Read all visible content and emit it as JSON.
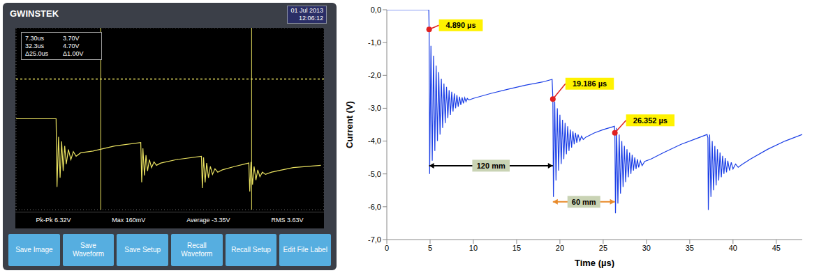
{
  "chart_data": [
    {
      "type": "line",
      "color": "#e8e060",
      "header": {
        "brand": "GWINSTEK",
        "date": "01 Jul 2013",
        "time": "12:06:12"
      },
      "readouts": [
        "7.30us",
        "3.70V",
        "32.3us",
        "4.70V",
        "Δ25.0us",
        "Δ1.00V"
      ],
      "measurements": [
        "Pk-Pk 6.32V",
        "Max 160mV",
        "Average -3.35V",
        "RMS 3.63V"
      ],
      "buttons": [
        "Save Image",
        "Save Waveform",
        "Save Setup",
        "Recall Waveform",
        "Recall Setup",
        "Edit File Label"
      ],
      "x": [
        0,
        1.3,
        1.33,
        1.38,
        1.43,
        1.48,
        1.53,
        1.58,
        1.63,
        1.7,
        1.78,
        1.86,
        1.95,
        2.1,
        2.5,
        3.2,
        4.05,
        4.08,
        4.12,
        4.17,
        4.22,
        4.27,
        4.33,
        4.4,
        4.48,
        4.56,
        4.7,
        5.2,
        6.02,
        6.05,
        6.09,
        6.14,
        6.19,
        6.25,
        6.31,
        6.38,
        6.46,
        6.55,
        6.7,
        7.1,
        7.56,
        7.59,
        7.63,
        7.68,
        7.73,
        7.79,
        7.85,
        7.92,
        8.0,
        8.1,
        8.3,
        9.0,
        9.9
      ],
      "values": [
        0,
        0,
        -3.0,
        -0.8,
        -2.6,
        -1.0,
        -2.3,
        -1.2,
        -2.0,
        -1.35,
        -1.8,
        -1.45,
        -1.65,
        -1.5,
        -1.42,
        -1.2,
        -1.05,
        -2.8,
        -1.3,
        -2.5,
        -1.6,
        -2.3,
        -1.8,
        -2.15,
        -1.9,
        -2.05,
        -1.95,
        -1.8,
        -1.65,
        -3.05,
        -1.7,
        -2.8,
        -1.95,
        -2.6,
        -2.1,
        -2.45,
        -2.2,
        -2.35,
        -2.25,
        -2.1,
        -1.95,
        -3.2,
        -1.9,
        -2.9,
        -2.1,
        -2.7,
        -2.25,
        -2.55,
        -2.35,
        -2.45,
        -2.35,
        -2.15,
        -2.05
      ],
      "xlim": [
        0,
        10
      ],
      "ylim": [
        -4,
        4
      ],
      "xticks": [
        0,
        1,
        2,
        3,
        4,
        5,
        6,
        7,
        8,
        9,
        10
      ],
      "yticks": [
        -4,
        -3,
        -2,
        -1,
        0,
        1,
        2,
        3,
        4
      ],
      "grid": true,
      "tick_labels": false,
      "cursors": {
        "x": [
          2.75,
          7.65
        ],
        "y": [
          1.75
        ]
      }
    },
    {
      "type": "line",
      "color": "#1a3ee6",
      "x_label": "Time (µs)",
      "y_label": "Current (V)",
      "x": [
        0,
        4.85,
        4.89,
        4.95,
        5.1,
        5.25,
        5.4,
        5.55,
        5.7,
        5.85,
        6.0,
        6.15,
        6.3,
        6.45,
        6.6,
        6.75,
        6.9,
        7.05,
        7.2,
        7.35,
        7.5,
        7.65,
        7.8,
        7.95,
        8.1,
        8.25,
        8.4,
        8.55,
        8.7,
        8.85,
        9.0,
        9.15,
        9.3,
        9.5,
        10,
        12,
        14,
        16,
        18,
        19.1,
        19.186,
        19.25,
        19.4,
        19.55,
        19.7,
        19.85,
        20.0,
        20.15,
        20.3,
        20.45,
        20.6,
        20.75,
        20.9,
        21.05,
        21.2,
        21.35,
        21.5,
        21.65,
        21.8,
        21.95,
        22.1,
        22.3,
        22.5,
        22.7,
        23.0,
        24,
        25,
        26.3,
        26.352,
        26.42,
        26.55,
        26.7,
        26.85,
        27.0,
        27.15,
        27.3,
        27.45,
        27.6,
        27.75,
        27.9,
        28.05,
        28.2,
        28.35,
        28.5,
        28.65,
        28.8,
        28.95,
        29.1,
        29.3,
        29.5,
        29.8,
        30.5,
        32,
        34,
        36,
        37.0,
        37.1,
        37.15,
        37.3,
        37.45,
        37.6,
        37.75,
        37.9,
        38.05,
        38.2,
        38.35,
        38.5,
        38.65,
        38.8,
        38.95,
        39.1,
        39.25,
        39.4,
        39.6,
        39.8,
        40.0,
        40.3,
        40.6,
        41,
        42,
        44,
        46,
        48
      ],
      "values": [
        0,
        0,
        -0.6,
        -5.0,
        -1.1,
        -4.6,
        -1.4,
        -4.3,
        -1.7,
        -4.0,
        -1.9,
        -3.8,
        -2.1,
        -3.6,
        -2.25,
        -3.45,
        -2.35,
        -3.3,
        -2.45,
        -3.2,
        -2.5,
        -3.1,
        -2.55,
        -3.0,
        -2.6,
        -2.95,
        -2.65,
        -2.9,
        -2.67,
        -2.85,
        -2.68,
        -2.8,
        -2.7,
        -2.75,
        -2.7,
        -2.55,
        -2.42,
        -2.3,
        -2.2,
        -2.12,
        -2.72,
        -5.7,
        -2.8,
        -5.2,
        -3.0,
        -4.9,
        -3.2,
        -4.7,
        -3.35,
        -4.55,
        -3.45,
        -4.4,
        -3.55,
        -4.3,
        -3.65,
        -4.2,
        -3.7,
        -4.1,
        -3.75,
        -4.05,
        -3.8,
        -4.0,
        -3.85,
        -3.95,
        -3.88,
        -3.75,
        -3.65,
        -3.55,
        -3.75,
        -6.2,
        -3.6,
        -5.9,
        -3.8,
        -5.6,
        -4.0,
        -5.4,
        -4.15,
        -5.25,
        -4.25,
        -5.1,
        -4.35,
        -5.0,
        -4.42,
        -4.9,
        -4.5,
        -4.85,
        -4.55,
        -4.8,
        -4.6,
        -4.75,
        -4.62,
        -4.55,
        -4.35,
        -4.1,
        -3.9,
        -3.8,
        -3.9,
        -6.1,
        -3.8,
        -5.7,
        -4.0,
        -5.5,
        -4.15,
        -5.35,
        -4.25,
        -5.2,
        -4.35,
        -5.1,
        -4.45,
        -5.0,
        -4.52,
        -4.95,
        -4.6,
        -4.9,
        -4.65,
        -4.85,
        -4.7,
        -4.8,
        -4.72,
        -4.55,
        -4.25,
        -4.0,
        -3.8
      ],
      "xlim": [
        0,
        48
      ],
      "ylim": [
        -7,
        0
      ],
      "xticks": [
        0,
        5,
        10,
        15,
        20,
        25,
        30,
        35,
        40,
        45
      ],
      "yticks": [
        {
          "value": 0,
          "label": "0,0"
        },
        {
          "value": -1,
          "label": "-1,0"
        },
        {
          "value": -2,
          "label": "-2,0"
        },
        {
          "value": -3,
          "label": "-3,0"
        },
        {
          "value": -4,
          "label": "-4,0"
        },
        {
          "value": -5,
          "label": "-5,0"
        },
        {
          "value": -6,
          "label": "-6,0"
        },
        {
          "value": -7,
          "label": "-7,0"
        }
      ],
      "grid": false,
      "annotations": [
        {
          "text": "4.890 µs",
          "x": 4.89,
          "y": -0.6,
          "color": "#e02020"
        },
        {
          "text": "19.186 µs",
          "x": 19.186,
          "y": -2.72,
          "color": "#e02020"
        },
        {
          "text": "26.352 µs",
          "x": 26.352,
          "y": -3.75,
          "color": "#e02020"
        }
      ],
      "spans": [
        {
          "text": "120 mm",
          "x": [
            4.89,
            19.186
          ],
          "y": -4.75,
          "color": "#000000"
        },
        {
          "text": "60 mm",
          "x": [
            19.186,
            26.352
          ],
          "y": -5.85,
          "color": "#e88a2a"
        }
      ]
    }
  ]
}
